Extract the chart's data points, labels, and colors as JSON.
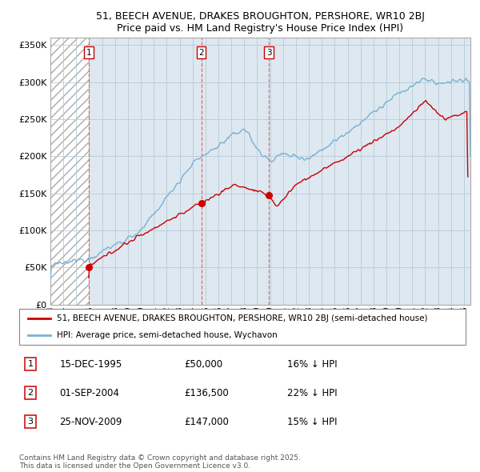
{
  "title_line1": "51, BEECH AVENUE, DRAKES BROUGHTON, PERSHORE, WR10 2BJ",
  "title_line2": "Price paid vs. HM Land Registry's House Price Index (HPI)",
  "legend_label_red": "51, BEECH AVENUE, DRAKES BROUGHTON, PERSHORE, WR10 2BJ (semi-detached house)",
  "legend_label_blue": "HPI: Average price, semi-detached house, Wychavon",
  "footer": "Contains HM Land Registry data © Crown copyright and database right 2025.\nThis data is licensed under the Open Government Licence v3.0.",
  "transactions": [
    {
      "num": 1,
      "date": "15-DEC-1995",
      "price": 50000,
      "hpi_pct": "16% ↓ HPI",
      "year": 1995.96
    },
    {
      "num": 2,
      "date": "01-SEP-2004",
      "price": 136500,
      "hpi_pct": "22% ↓ HPI",
      "year": 2004.67
    },
    {
      "num": 3,
      "date": "25-NOV-2009",
      "price": 147000,
      "hpi_pct": "15% ↓ HPI",
      "year": 2009.9
    }
  ],
  "red_line_color": "#cc0000",
  "blue_line_color": "#7ab0d4",
  "hatch_color": "#cccccc",
  "dashed_line_color": "#e06060",
  "ylim": [
    0,
    360000
  ],
  "yticks": [
    0,
    50000,
    100000,
    150000,
    200000,
    250000,
    300000,
    350000
  ],
  "xlim_start": 1993.0,
  "xlim_end": 2025.5,
  "chart_bg_color": "#dde8f0",
  "fig_bg_color": "#ffffff"
}
